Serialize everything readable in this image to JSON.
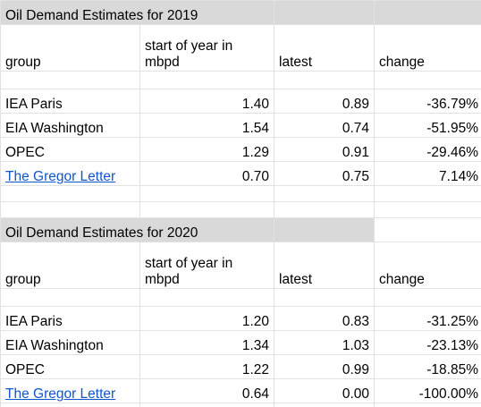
{
  "sections": [
    {
      "title": "Oil Demand Estimates for 2019",
      "headers": {
        "group": "group",
        "start": "start of year in mbpd",
        "latest": "latest",
        "change": "change"
      },
      "rows": [
        {
          "group": "IEA Paris",
          "start": "1.40",
          "latest": "0.89",
          "change": "-36.79%"
        },
        {
          "group": "EIA Washington",
          "start": "1.54",
          "latest": "0.74",
          "change": "-51.95%"
        },
        {
          "group": "OPEC",
          "start": "1.29",
          "latest": "0.91",
          "change": "-29.46%"
        },
        {
          "group": "The Gregor Letter",
          "start": "0.70",
          "latest": "0.75",
          "change": "7.14%"
        }
      ]
    },
    {
      "title": "Oil Demand Estimates for 2020",
      "headers": {
        "group": "group",
        "start": "start of year in mbpd",
        "latest": "latest",
        "change": "change"
      },
      "rows": [
        {
          "group": "IEA Paris",
          "start": "1.20",
          "latest": "0.83",
          "change": "-31.25%"
        },
        {
          "group": "EIA Washington",
          "start": "1.34",
          "latest": "1.03",
          "change": "-23.13%"
        },
        {
          "group": "OPEC",
          "start": "1.22",
          "latest": "0.99",
          "change": "-18.85%"
        },
        {
          "group": "The Gregor Letter",
          "start": "0.64",
          "latest": "0.00",
          "change": "-100.00%"
        }
      ]
    }
  ],
  "colors": {
    "header_fill": "#d9d9d9",
    "link": "#1155cc",
    "grid": "#e2e2e2"
  }
}
